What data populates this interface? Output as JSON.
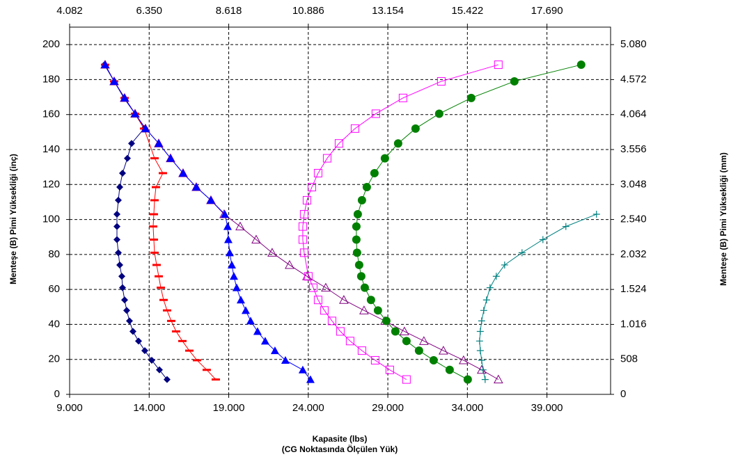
{
  "chart_data": {
    "type": "scatter",
    "y_label": "Menteşe (B) Pimi Yüksekliği (inç)",
    "y2_label": "Menteşe (B) Pimi Yüksekliği (mm)",
    "x_label": "Kapasite (lbs)",
    "x_sublabel": "(CG Noktasında Ölçülen Yük)",
    "xlim": [
      9000,
      43000
    ],
    "xticks": [
      {
        "value": 9000,
        "label": "9.000"
      },
      {
        "value": 14000,
        "label": "14.000"
      },
      {
        "value": 19000,
        "label": "19.000"
      },
      {
        "value": 24000,
        "label": "24.000"
      },
      {
        "value": 29000,
        "label": "29.000"
      },
      {
        "value": 34000,
        "label": "34.000"
      },
      {
        "value": 39000,
        "label": "39.000"
      }
    ],
    "x2lim": [
      4082,
      19504
    ],
    "x2ticks": [
      {
        "value": 4082,
        "label": "4.082"
      },
      {
        "value": 6350,
        "label": "6.350"
      },
      {
        "value": 8618,
        "label": "8.618"
      },
      {
        "value": 10886,
        "label": "10.886"
      },
      {
        "value": 13154,
        "label": "13.154"
      },
      {
        "value": 15422,
        "label": "15.422"
      },
      {
        "value": 17690,
        "label": "17.690"
      }
    ],
    "ylim": [
      0,
      210
    ],
    "yticks": [
      0,
      20,
      40,
      60,
      80,
      100,
      120,
      140,
      160,
      180,
      200
    ],
    "y2lim": [
      0,
      5334
    ],
    "y2ticks": [
      0,
      508,
      {
        "value": 1016,
        "label": "1.016"
      },
      {
        "value": 1524,
        "label": "1.524"
      },
      {
        "value": 2032,
        "label": "2.032"
      },
      {
        "value": 2540,
        "label": "2.540"
      },
      {
        "value": 3048,
        "label": "3.048"
      },
      {
        "value": 3556,
        "label": "3.556"
      },
      {
        "value": 4064,
        "label": "4.064"
      },
      {
        "value": 4572,
        "label": "4.572"
      },
      {
        "value": 5080,
        "label": "5.080"
      }
    ],
    "grid": true,
    "series": [
      {
        "color": "#000080",
        "marker": "diamond",
        "x": [
          15124,
          14643,
          14162,
          13724,
          13331,
          12981,
          12762,
          12587,
          12456,
          12325,
          12281,
          12150,
          12062,
          11975,
          11975,
          11975,
          12062,
          12150,
          12325,
          12630,
          12893,
          13680,
          13112,
          12412,
          11800,
          11187
        ],
        "values": [
          8.5,
          14,
          19.5,
          25,
          30.5,
          36,
          42,
          48,
          54,
          61,
          67.5,
          74,
          81,
          88.5,
          96,
          103,
          111,
          118.5,
          126.5,
          135,
          143.5,
          152,
          160.5,
          169.5,
          179,
          188.5
        ]
      },
      {
        "color": "#ff0000",
        "marker": "dash",
        "x": [
          18186,
          17618,
          17005,
          16524,
          16087,
          15693,
          15387,
          15124,
          14906,
          14731,
          14600,
          14468,
          14337,
          14293,
          14249,
          14293,
          14337,
          14424,
          14862,
          14337,
          13680,
          13112,
          12456,
          11800,
          11231
        ],
        "values": [
          8.5,
          14,
          19.5,
          25,
          30.5,
          36,
          42,
          48,
          54,
          61,
          67.5,
          74,
          81,
          88.5,
          96,
          103,
          111,
          118.5,
          126.5,
          135,
          152,
          160.5,
          169.5,
          179,
          188.5
        ]
      },
      {
        "color": "#800080",
        "marker": "triangle-open",
        "x": [
          35947,
          34897,
          33760,
          32491,
          31266,
          30041,
          28816,
          27504,
          26236,
          25098,
          23917,
          22823,
          21729,
          20724,
          19718,
          18711,
          17880,
          16962,
          16130,
          15343,
          14600,
          13768,
          13112,
          12456,
          11800,
          11231
        ],
        "values": [
          8.5,
          14,
          19.5,
          25,
          30.5,
          36,
          42,
          48,
          54,
          61,
          67.5,
          74,
          81,
          88.5,
          96,
          103,
          111,
          118.5,
          126.5,
          135,
          143.5,
          152,
          160.5,
          169.5,
          179,
          188.5
        ]
      },
      {
        "color": "#0000ff",
        "marker": "triangle",
        "x": [
          24136,
          23654,
          22562,
          21905,
          21292,
          20811,
          20374,
          20068,
          19761,
          19498,
          19324,
          19193,
          19061,
          18974,
          18930,
          18755,
          17880,
          16962,
          16130,
          15343,
          14600,
          13768,
          13112,
          12456,
          11800,
          11231
        ],
        "values": [
          8.5,
          14,
          19.5,
          25,
          30.5,
          36,
          42,
          48,
          54,
          61,
          67.5,
          74,
          81,
          88.5,
          96,
          103,
          111,
          118.5,
          126.5,
          135,
          143.5,
          152,
          160.5,
          169.5,
          179,
          188.5
        ]
      },
      {
        "color": "#ff00ff",
        "marker": "square-open",
        "x": [
          30172,
          29122,
          28204,
          27373,
          26629,
          26017,
          25492,
          25011,
          24617,
          24311,
          24004,
          23742,
          23654,
          23654,
          23742,
          23917,
          24223,
          24617,
          25186,
          25929,
          26935,
          28247,
          29953,
          32359,
          35947
        ],
        "values": [
          8.5,
          14,
          19.5,
          25,
          30.5,
          36,
          42,
          48,
          54,
          61,
          67.5,
          81,
          88.5,
          96,
          103,
          111,
          118.5,
          126.5,
          135,
          143.5,
          152,
          160.5,
          169.5,
          179,
          188.5
        ]
      },
      {
        "color": "#008000",
        "marker": "circle",
        "x": [
          34022,
          32885,
          31878,
          30960,
          30172,
          29472,
          28903,
          28379,
          27941,
          27548,
          27329,
          27198,
          27066,
          27023,
          27023,
          27110,
          27373,
          27679,
          28160,
          28816,
          29647,
          30741,
          32228,
          34241,
          36953,
          41152
        ],
        "values": [
          8.5,
          14,
          19.5,
          25,
          30.5,
          36,
          42,
          48,
          54,
          61,
          67.5,
          74,
          81,
          88.5,
          96,
          103,
          111,
          118.5,
          126.5,
          135,
          143.5,
          152,
          160.5,
          169.5,
          179,
          188.5
        ]
      },
      {
        "color": "#008080",
        "marker": "plus",
        "x": [
          35116,
          34985,
          34897,
          34810,
          34766,
          34810,
          34897,
          35028,
          35203,
          35422,
          35816,
          36341,
          37435,
          38747,
          40190,
          42115
        ],
        "values": [
          8.5,
          14,
          19.5,
          25,
          30.5,
          36,
          42,
          48,
          54,
          61,
          67.5,
          74,
          81,
          88.5,
          96,
          103
        ]
      }
    ]
  }
}
